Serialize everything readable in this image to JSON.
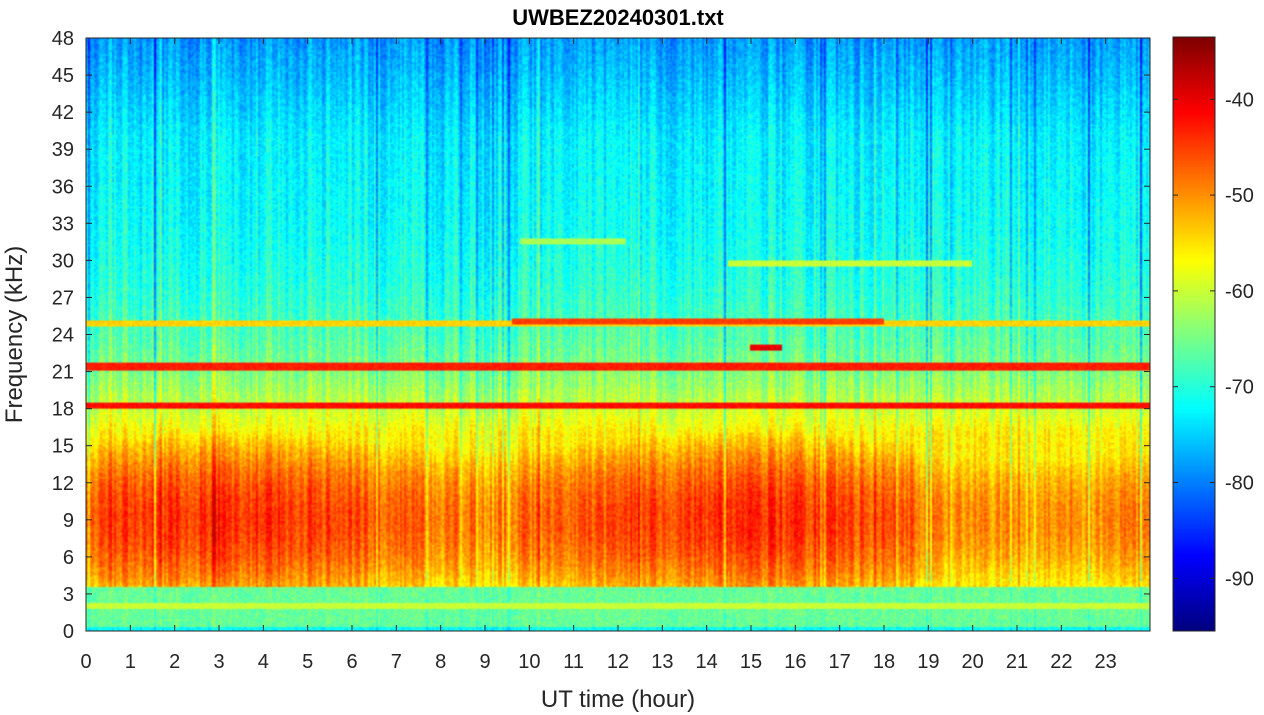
{
  "chart_data": {
    "type": "heatmap",
    "title": "UWBEZ20240301.txt",
    "xlabel": "UT time (hour)",
    "ylabel": "Frequency (kHz)",
    "xlim": [
      0,
      24
    ],
    "ylim": [
      0,
      48
    ],
    "x_ticks": [
      0,
      1,
      2,
      3,
      4,
      5,
      6,
      7,
      8,
      9,
      10,
      11,
      12,
      13,
      14,
      15,
      16,
      17,
      18,
      19,
      20,
      21,
      22,
      23
    ],
    "y_ticks": [
      0,
      3,
      6,
      9,
      12,
      15,
      18,
      21,
      24,
      27,
      30,
      33,
      36,
      39,
      42,
      45,
      48
    ],
    "colorbar": {
      "colormap": "jet",
      "clim": [
        -95.5,
        -33.5
      ],
      "ticks": [
        -40,
        -50,
        -60,
        -70,
        -80,
        -90
      ]
    },
    "features": {
      "background_low_dB": -74,
      "lower_band_kHz": [
        3.5,
        16
      ],
      "lower_band_peak_kHz": 9,
      "lower_band_peak_dB": -46,
      "continuous_lines": [
        {
          "freq_kHz": 21.4,
          "level_dB": -43,
          "x_range": [
            0,
            24
          ]
        },
        {
          "freq_kHz": 18.2,
          "level_dB": -42,
          "x_range": [
            0,
            24
          ]
        },
        {
          "freq_kHz": 24.9,
          "level_dB": -54,
          "x_range": [
            0,
            24
          ]
        },
        {
          "freq_kHz": 25.0,
          "level_dB": -45,
          "x_range": [
            9.6,
            18
          ]
        },
        {
          "freq_kHz": 3.8,
          "level_dB": -58,
          "x_range": [
            0,
            24
          ]
        },
        {
          "freq_kHz": 2.0,
          "level_dB": -60,
          "x_range": [
            0,
            24
          ]
        },
        {
          "freq_kHz": 29.8,
          "level_dB": -60,
          "x_range": [
            14.5,
            20
          ]
        },
        {
          "freq_kHz": 31.5,
          "level_dB": -62,
          "x_range": [
            9.8,
            12.2
          ]
        },
        {
          "freq_kHz": 23.0,
          "level_dB": -40,
          "x_range": [
            15.0,
            15.7
          ]
        }
      ]
    }
  }
}
